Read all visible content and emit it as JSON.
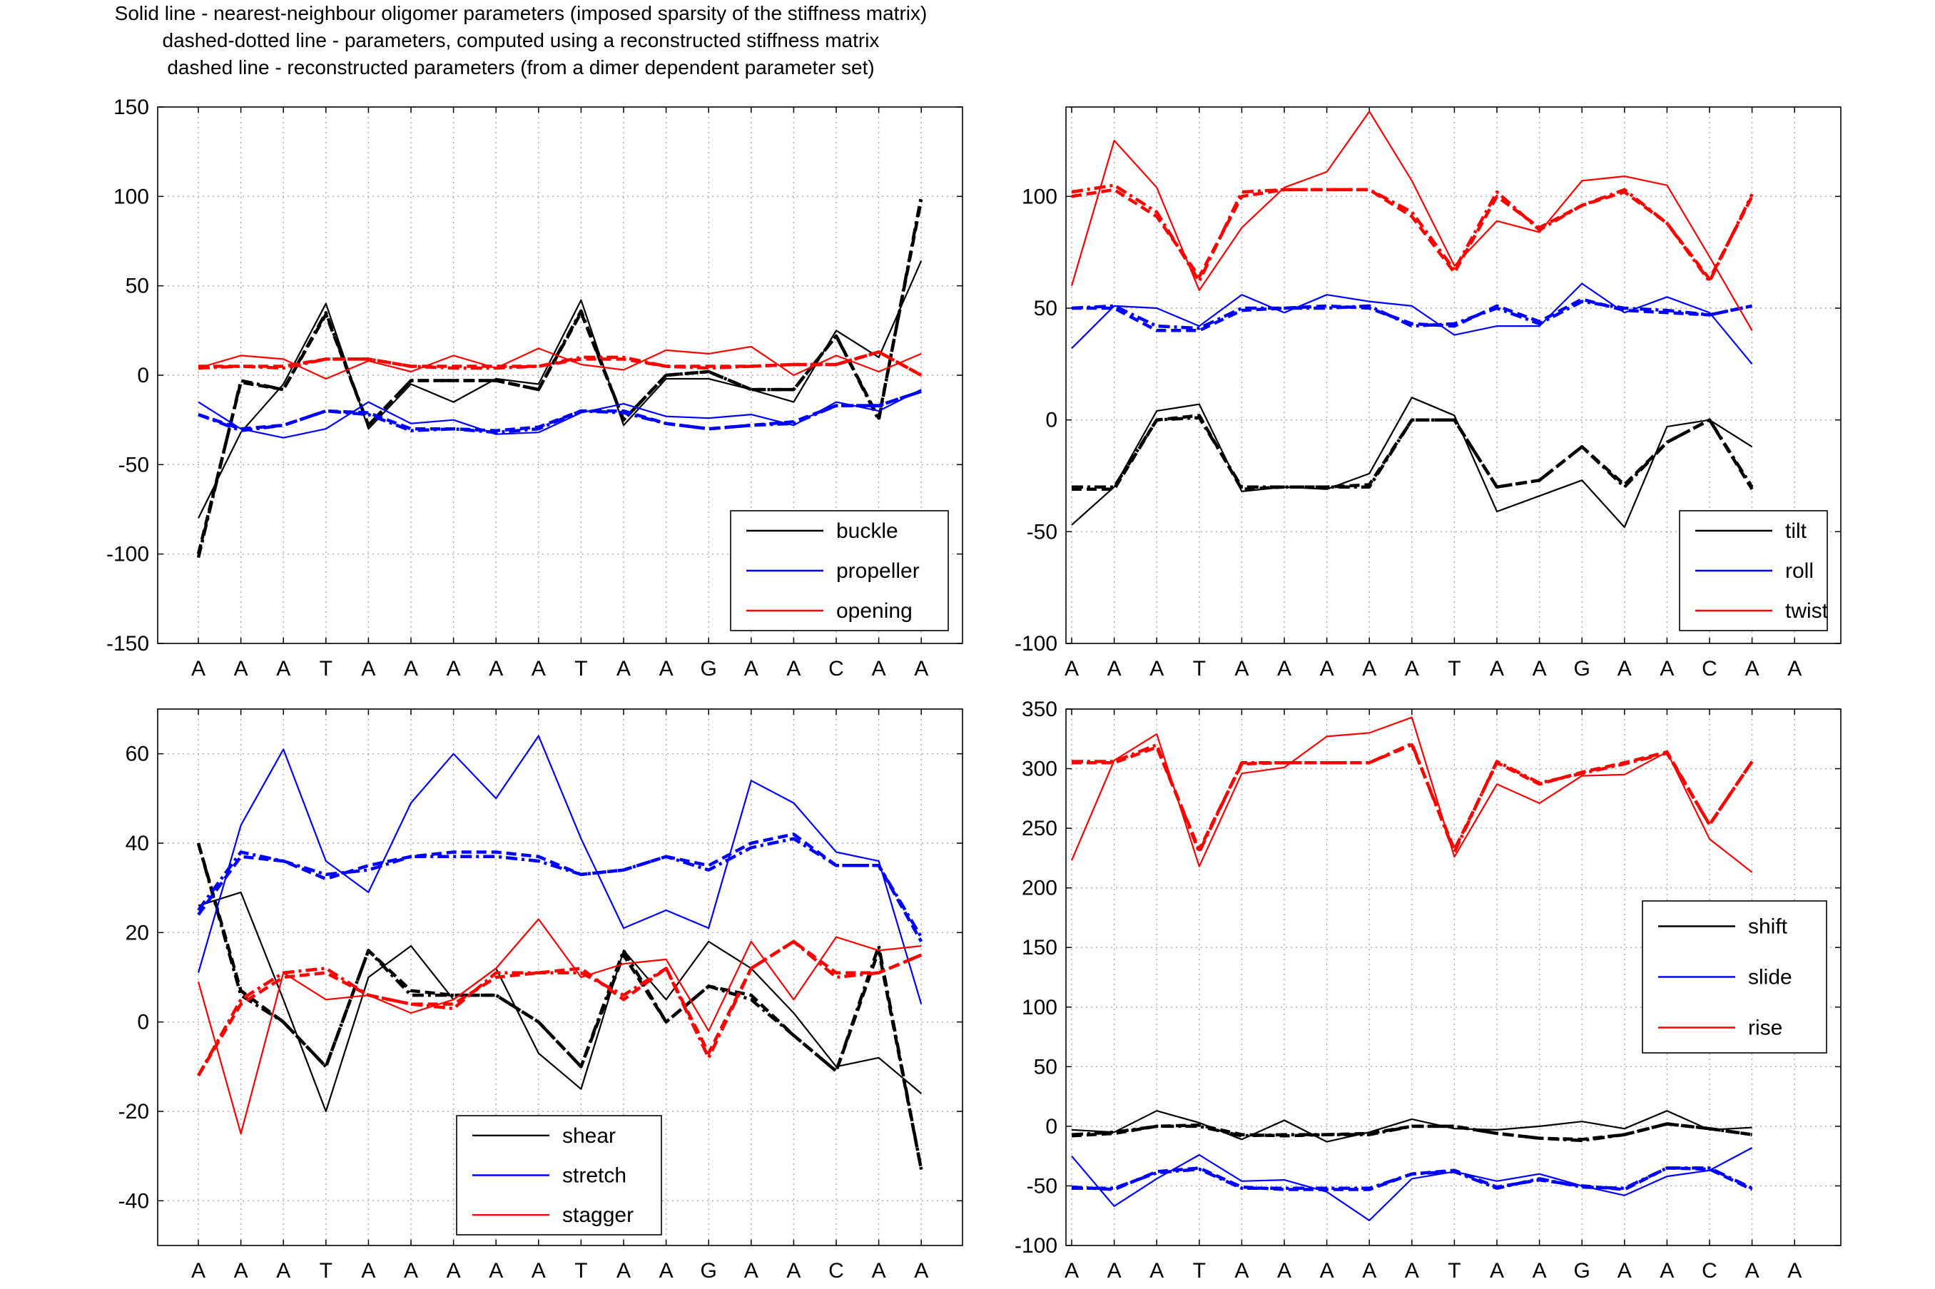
{
  "title_lines": [
    "Solid line - nearest-neighbour oligomer parameters (imposed sparsity of the stiffness matrix)",
    "dashed-dotted line - parameters, computed using a reconstructed stiffness matrix",
    "dashed line - reconstructed parameters (from a dimer dependent parameter set)"
  ],
  "colors": {
    "black": "#000000",
    "blue": "#0000ff",
    "red": "#ff0000",
    "grid": "#aaaaaa"
  },
  "chart_data": [
    {
      "type": "line",
      "categories": [
        "A",
        "A",
        "A",
        "T",
        "A",
        "A",
        "A",
        "A",
        "A",
        "T",
        "A",
        "A",
        "G",
        "A",
        "A",
        "C",
        "A",
        "A"
      ],
      "ylim": [
        -150,
        150
      ],
      "yticks": [
        -150,
        -100,
        -50,
        0,
        50,
        100,
        150
      ],
      "grid": true,
      "legend_position": "lower-right",
      "series": [
        {
          "name": "buckle",
          "color": "#000000",
          "solid": [
            -80,
            -32,
            -5,
            40,
            -30,
            -5,
            -15,
            -2,
            -5,
            42,
            -28,
            -2,
            -2,
            -8,
            -15,
            25,
            10,
            64
          ],
          "dashdot": [
            -102,
            -3,
            -8,
            35,
            -28,
            -3,
            -3,
            -3,
            -8,
            36,
            -25,
            0,
            2,
            -8,
            -8,
            22,
            -25,
            100
          ],
          "dashed": [
            -100,
            -4,
            -8,
            34,
            -28,
            -3,
            -3,
            -3,
            -8,
            35,
            -25,
            0,
            2,
            -8,
            -8,
            22,
            -24,
            98
          ]
        },
        {
          "name": "propeller",
          "color": "#0000ff",
          "solid": [
            -15,
            -30,
            -35,
            -30,
            -15,
            -27,
            -25,
            -33,
            -32,
            -21,
            -16,
            -23,
            -24,
            -22,
            -28,
            -15,
            -20,
            -8
          ],
          "dashdot": [
            -22,
            -31,
            -28,
            -20,
            -22,
            -31,
            -30,
            -32,
            -30,
            -20,
            -21,
            -27,
            -30,
            -28,
            -27,
            -17,
            -17,
            -9
          ],
          "dashed": [
            -22,
            -30,
            -28,
            -20,
            -21,
            -30,
            -30,
            -31,
            -29,
            -20,
            -20,
            -27,
            -30,
            -28,
            -26,
            -17,
            -17,
            -9
          ]
        },
        {
          "name": "opening",
          "color": "#ff0000",
          "solid": [
            4,
            11,
            9,
            -2,
            8,
            2,
            11,
            4,
            15,
            6,
            3,
            14,
            12,
            16,
            0,
            11,
            2,
            12
          ],
          "dashdot": [
            4,
            5,
            4,
            9,
            9,
            5,
            4,
            4,
            5,
            10,
            10,
            5,
            4,
            5,
            6,
            6,
            13,
            0
          ],
          "dashed": [
            5,
            5,
            5,
            9,
            9,
            5,
            5,
            5,
            5,
            9,
            9,
            5,
            5,
            5,
            6,
            6,
            13,
            0
          ]
        }
      ]
    },
    {
      "type": "line",
      "categories": [
        "A",
        "A",
        "A",
        "T",
        "A",
        "A",
        "A",
        "A",
        "A",
        "T",
        "A",
        "A",
        "G",
        "A",
        "A",
        "C",
        "A",
        "A"
      ],
      "ylim": [
        -100,
        140
      ],
      "yticks": [
        -100,
        -50,
        0,
        50,
        100
      ],
      "grid": true,
      "legend_position": "lower-right",
      "series": [
        {
          "name": "tilt",
          "color": "#000000",
          "solid": [
            -47,
            -30,
            4,
            7,
            -32,
            -30,
            -31,
            -24,
            10,
            2,
            -41,
            -34,
            -27,
            -48,
            -3,
            0,
            -12
          ],
          "dashdot": [
            -30,
            -30,
            0,
            1,
            -30,
            -30,
            -30,
            -30,
            0,
            0,
            -30,
            -27,
            -12,
            -30,
            -10,
            0,
            -30
          ],
          "dashed": [
            -31,
            -31,
            0,
            2,
            -31,
            -30,
            -30,
            -29,
            0,
            0,
            -30,
            -27,
            -12,
            -29,
            -10,
            0,
            -31
          ]
        },
        {
          "name": "roll",
          "color": "#0000ff",
          "solid": [
            32,
            51,
            50,
            42,
            56,
            48,
            56,
            53,
            51,
            38,
            42,
            42,
            61,
            48,
            55,
            48,
            25
          ],
          "dashdot": [
            50,
            51,
            42,
            41,
            50,
            50,
            50,
            51,
            42,
            43,
            50,
            43,
            53,
            50,
            49,
            47,
            51
          ],
          "dashed": [
            50,
            50,
            40,
            40,
            49,
            50,
            51,
            50,
            43,
            42,
            51,
            44,
            54,
            49,
            48,
            47,
            51
          ]
        },
        {
          "name": "twist",
          "color": "#ff0000",
          "solid": [
            60,
            125,
            104,
            58,
            86,
            104,
            111,
            138,
            107,
            69,
            89,
            84,
            107,
            109,
            105,
            73,
            40
          ],
          "dashdot": [
            102,
            105,
            93,
            62,
            102,
            103,
            103,
            103,
            93,
            67,
            102,
            85,
            96,
            103,
            88,
            62,
            101
          ],
          "dashed": [
            100,
            103,
            91,
            64,
            100,
            103,
            103,
            103,
            91,
            66,
            100,
            86,
            96,
            102,
            88,
            63,
            100
          ]
        }
      ]
    },
    {
      "type": "line",
      "categories": [
        "A",
        "A",
        "A",
        "T",
        "A",
        "A",
        "A",
        "A",
        "A",
        "T",
        "A",
        "A",
        "G",
        "A",
        "A",
        "C",
        "A",
        "A"
      ],
      "ylim": [
        -50,
        70
      ],
      "yticks": [
        -40,
        -20,
        0,
        20,
        40,
        60
      ],
      "grid": true,
      "legend_position": "bottom-center",
      "series": [
        {
          "name": "shear",
          "color": "#000000",
          "solid": [
            26,
            29,
            5,
            -20,
            10,
            17,
            5,
            12,
            -7,
            -15,
            16,
            5,
            18,
            12,
            2,
            -10,
            -8,
            -16
          ],
          "dashdot": [
            40,
            6,
            0,
            -10,
            16,
            6,
            6,
            6,
            0,
            -10,
            16,
            0,
            8,
            5,
            -3,
            -11,
            17,
            -33
          ],
          "dashed": [
            40,
            7,
            0,
            -10,
            16,
            7,
            6,
            6,
            0,
            -10,
            15,
            0,
            8,
            6,
            -3,
            -11,
            16,
            -33
          ]
        },
        {
          "name": "stretch",
          "color": "#0000ff",
          "solid": [
            11,
            44,
            61,
            36,
            29,
            49,
            60,
            50,
            64,
            41,
            21,
            25,
            21,
            54,
            49,
            38,
            36,
            4
          ],
          "dashdot": [
            25,
            38,
            36,
            33,
            34,
            37,
            37,
            37,
            36,
            33,
            34,
            37,
            34,
            39,
            41,
            35,
            35,
            19
          ],
          "dashed": [
            24,
            37,
            36,
            32,
            35,
            37,
            38,
            38,
            37,
            33,
            34,
            37,
            35,
            40,
            42,
            35,
            35,
            18
          ]
        },
        {
          "name": "stagger",
          "color": "#ff0000",
          "solid": [
            9,
            -25,
            11,
            5,
            6,
            2,
            5,
            12,
            23,
            10,
            13,
            14,
            -2,
            18,
            5,
            19,
            16,
            17
          ],
          "dashdot": [
            -12,
            5,
            11,
            12,
            6,
            4,
            3,
            11,
            11,
            11,
            6,
            12,
            -8,
            12,
            18,
            10,
            11,
            15
          ],
          "dashed": [
            -12,
            4,
            10,
            11,
            6,
            4,
            4,
            10,
            11,
            12,
            5,
            12,
            -7,
            12,
            18,
            11,
            11,
            15
          ]
        }
      ]
    },
    {
      "type": "line",
      "categories": [
        "A",
        "A",
        "A",
        "T",
        "A",
        "A",
        "A",
        "A",
        "A",
        "T",
        "A",
        "A",
        "G",
        "A",
        "A",
        "C",
        "A",
        "A"
      ],
      "ylim": [
        -100,
        350
      ],
      "yticks": [
        -100,
        -50,
        0,
        50,
        100,
        150,
        200,
        250,
        300,
        350
      ],
      "grid": true,
      "legend_position": "right",
      "series": [
        {
          "name": "shift",
          "color": "#000000",
          "solid": [
            -3,
            -5,
            13,
            3,
            -11,
            5,
            -13,
            -5,
            6,
            -2,
            -3,
            0,
            4,
            -2,
            13,
            -3,
            -1
          ],
          "dashdot": [
            -7,
            -5,
            0,
            0,
            -8,
            -7,
            -7,
            -7,
            0,
            0,
            -6,
            -10,
            -12,
            -7,
            2,
            -2,
            -7
          ],
          "dashed": [
            -8,
            -6,
            0,
            1,
            -7,
            -8,
            -7,
            -6,
            0,
            0,
            -6,
            -10,
            -11,
            -7,
            2,
            -2,
            -7
          ]
        },
        {
          "name": "slide",
          "color": "#0000ff",
          "solid": [
            -25,
            -67,
            -44,
            -24,
            -46,
            -45,
            -55,
            -79,
            -44,
            -38,
            -46,
            -40,
            -50,
            -58,
            -42,
            -37,
            -18
          ],
          "dashdot": [
            -52,
            -52,
            -39,
            -36,
            -52,
            -52,
            -52,
            -52,
            -40,
            -38,
            -52,
            -44,
            -51,
            -52,
            -35,
            -35,
            -52
          ],
          "dashed": [
            -51,
            -53,
            -38,
            -35,
            -51,
            -53,
            -53,
            -53,
            -40,
            -37,
            -51,
            -45,
            -50,
            -53,
            -35,
            -36,
            -53
          ]
        },
        {
          "name": "rise",
          "color": "#ff0000",
          "solid": [
            223,
            307,
            329,
            218,
            296,
            301,
            327,
            330,
            343,
            226,
            287,
            271,
            294,
            295,
            314,
            241,
            213
          ],
          "dashdot": [
            306,
            306,
            320,
            230,
            305,
            305,
            305,
            305,
            321,
            230,
            306,
            288,
            296,
            304,
            313,
            253,
            306
          ],
          "dashed": [
            305,
            305,
            318,
            232,
            304,
            305,
            305,
            305,
            320,
            232,
            305,
            287,
            297,
            305,
            314,
            253,
            306
          ]
        }
      ]
    }
  ]
}
